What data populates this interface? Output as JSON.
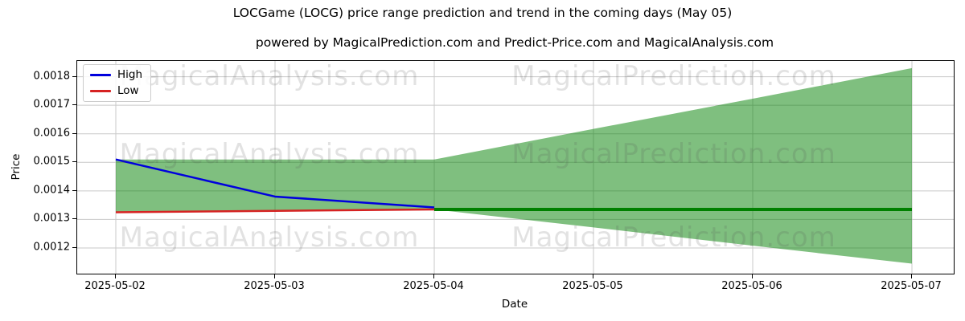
{
  "chart_data": {
    "type": "line",
    "title": "LOCGame (LOCG) price range prediction and trend in the coming days (May 05)",
    "subtitle": "powered by MagicalPrediction.com and Predict-Price.com and MagicalAnalysis.com",
    "xlabel": "Date",
    "ylabel": "Price",
    "x_labels": [
      "2025-05-02",
      "2025-05-03",
      "2025-05-04",
      "2025-05-05",
      "2025-05-06",
      "2025-05-07"
    ],
    "yticks": [
      0.0012,
      0.0013,
      0.0014,
      0.0015,
      0.0016,
      0.0017,
      0.0018
    ],
    "ylim": [
      0.00111,
      0.001855
    ],
    "grid": true,
    "legend_position": "upper-left",
    "colors": {
      "high": "#0000dd",
      "low": "#d62222",
      "trend": "#008000",
      "band": "#008000",
      "grid": "#c9c9c9"
    },
    "series": [
      {
        "name": "High",
        "color": "#0000dd",
        "x": [
          0,
          1,
          2
        ],
        "values": [
          0.00151,
          0.00138,
          0.001342
        ],
        "width": 2.5,
        "legend": true
      },
      {
        "name": "Low",
        "color": "#d62222",
        "x": [
          0,
          1,
          2
        ],
        "values": [
          0.001325,
          0.00133,
          0.001335
        ],
        "width": 2.5,
        "legend": true
      },
      {
        "name": "trend",
        "color": "#008000",
        "x": [
          2,
          3,
          4,
          5
        ],
        "values": [
          0.001335,
          0.001335,
          0.001335,
          0.001335
        ],
        "width": 4,
        "legend": false
      }
    ],
    "band": {
      "color": "#008000",
      "opacity": 0.5,
      "x": [
        0,
        1,
        2,
        3,
        4,
        5
      ],
      "upper": [
        0.00151,
        0.00151,
        0.00151,
        0.001617,
        0.001723,
        0.00183
      ],
      "lower": [
        0.001325,
        0.00133,
        0.001335,
        0.001272,
        0.001208,
        0.001145
      ]
    },
    "watermarks": {
      "left_text": "MagicalAnalysis.com",
      "right_text": "MagicalPrediction.com"
    }
  }
}
